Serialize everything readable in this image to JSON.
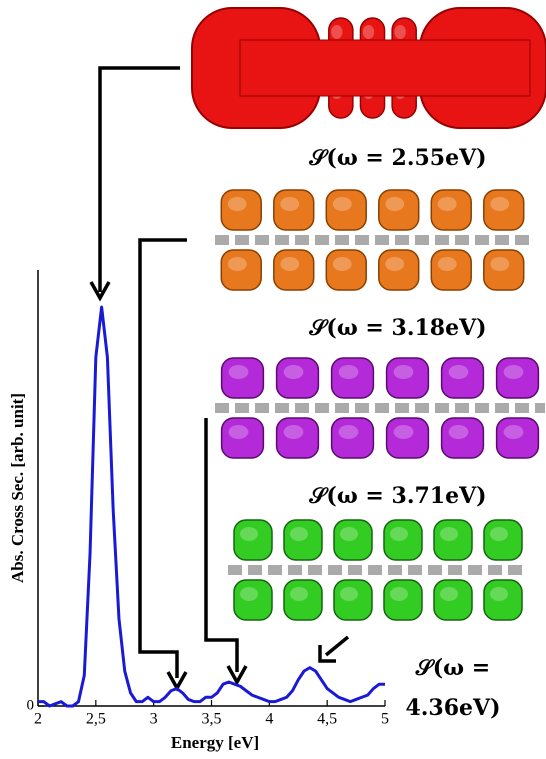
{
  "chart_data": {
    "type": "line",
    "x_label": "Energy [eV]",
    "y_label": "Abs. Cross Sec. [arb. unit]",
    "x": [
      2.0,
      2.05,
      2.1,
      2.15,
      2.2,
      2.25,
      2.3,
      2.35,
      2.4,
      2.45,
      2.5,
      2.55,
      2.6,
      2.65,
      2.7,
      2.75,
      2.8,
      2.85,
      2.9,
      2.95,
      3.0,
      3.05,
      3.1,
      3.15,
      3.2,
      3.25,
      3.3,
      3.35,
      3.4,
      3.45,
      3.5,
      3.55,
      3.6,
      3.65,
      3.7,
      3.75,
      3.8,
      3.85,
      3.9,
      3.95,
      4.0,
      4.05,
      4.1,
      4.15,
      4.2,
      4.25,
      4.3,
      4.35,
      4.4,
      4.45,
      4.5,
      4.55,
      4.6,
      4.65,
      4.7,
      4.75,
      4.8,
      4.85,
      4.9,
      4.95,
      5.0
    ],
    "series": [
      {
        "color": "#1a1ad6",
        "values": [
          0.01,
          0.01,
          0.0,
          0.005,
          0.01,
          0.0,
          0.0,
          0.01,
          0.07,
          0.35,
          0.8,
          0.915,
          0.8,
          0.45,
          0.2,
          0.08,
          0.03,
          0.01,
          0.01,
          0.02,
          0.01,
          0.01,
          0.02,
          0.035,
          0.04,
          0.03,
          0.015,
          0.01,
          0.01,
          0.02,
          0.02,
          0.03,
          0.05,
          0.055,
          0.05,
          0.045,
          0.035,
          0.025,
          0.02,
          0.015,
          0.01,
          0.01,
          0.015,
          0.02,
          0.035,
          0.06,
          0.08,
          0.088,
          0.08,
          0.06,
          0.04,
          0.03,
          0.02,
          0.015,
          0.01,
          0.015,
          0.02,
          0.025,
          0.04,
          0.05,
          0.05
        ]
      }
    ],
    "xlim": [
      2,
      5
    ],
    "ylim": [
      0,
      1
    ],
    "xticks": [
      2,
      {
        "value": 2.5,
        "label": "2,5"
      },
      3,
      {
        "value": 3.5,
        "label": "3,5"
      },
      4,
      {
        "value": 4.5,
        "label": "4,5"
      },
      5
    ],
    "yticks": [
      0
    ],
    "annotations": [
      {
        "text": "𝒮(ω = 2.55eV)"
      },
      {
        "text": "𝒮(ω = 3.18eV)"
      },
      {
        "text": "𝒮(ω = 3.71eV)"
      },
      {
        "text": "𝒮(ω = 4.36eV)"
      }
    ]
  }
}
